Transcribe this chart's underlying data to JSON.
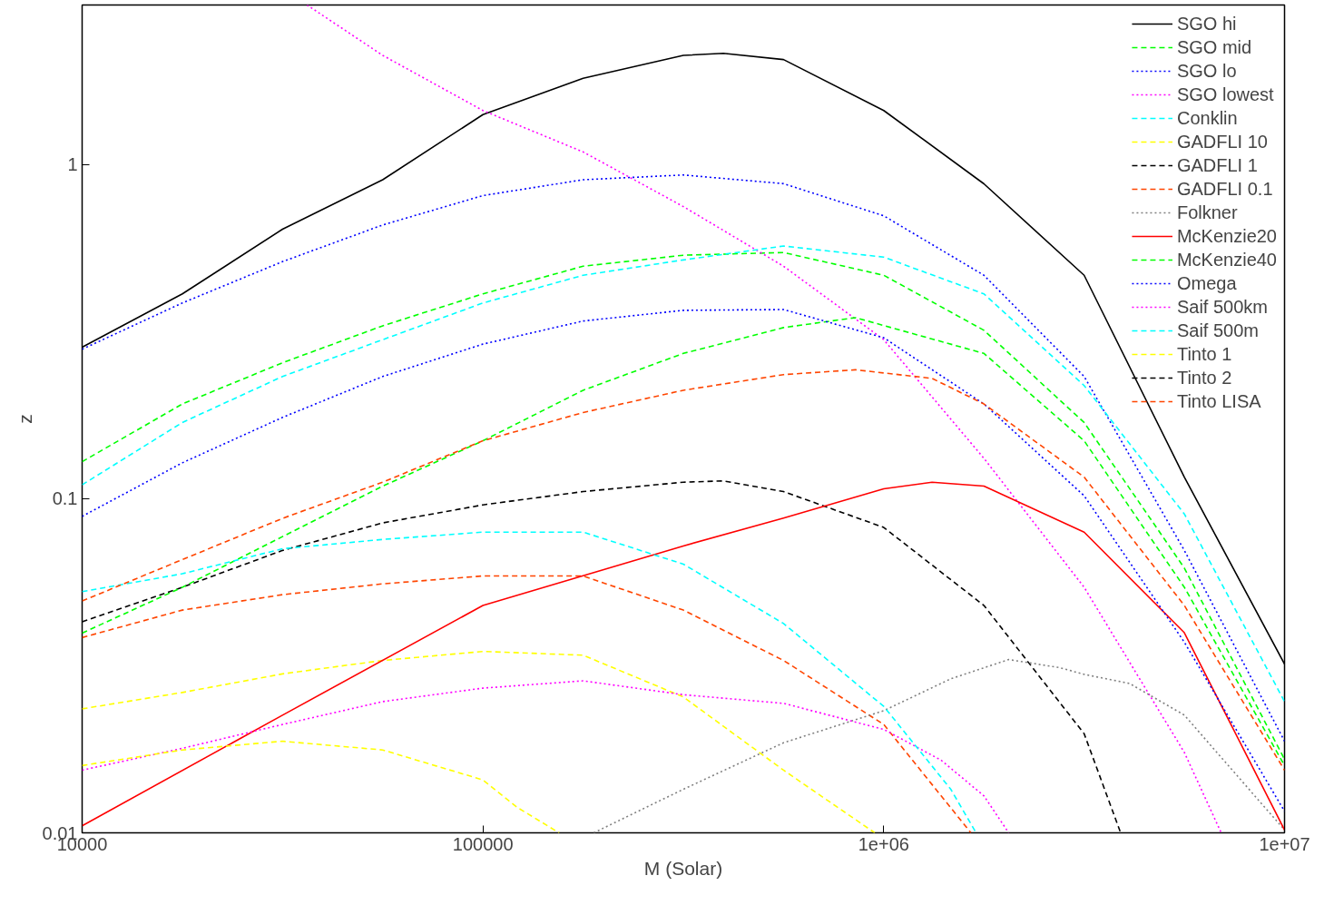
{
  "chart_data": {
    "type": "line",
    "xlabel": "M (Solar)",
    "ylabel": "z",
    "log": "xy",
    "xlim": [
      10000,
      10000000
    ],
    "ylim": [
      0.01,
      3
    ],
    "xticks": [
      10000,
      100000,
      {
        "value": 1000000,
        "label": "1e+06"
      },
      {
        "value": 10000000,
        "label": "1e+07"
      }
    ],
    "yticks": [
      0.01,
      0.1,
      1
    ],
    "grid": false,
    "legend": "top right",
    "marker": "none",
    "series": [
      {
        "name": "SGO hi",
        "color": "#000000",
        "line_style": "solid",
        "x": [
          10000,
          17783,
          31623,
          56234,
          100000,
          177828,
          316228,
          398107,
          562341,
          1000000,
          1778279,
          3162278,
          5623413,
          10000000
        ],
        "values": [
          0.284,
          0.41,
          0.64,
          0.9,
          1.41,
          1.81,
          2.12,
          2.15,
          2.06,
          1.45,
          0.875,
          0.466,
          0.116,
          0.032
        ]
      },
      {
        "name": "SGO mid",
        "color": "#00ff00",
        "line_style": "dashed",
        "x": [
          10000,
          17783,
          31623,
          56234,
          100000,
          177828,
          316228,
          562341,
          1000000,
          1778279,
          3162278,
          5623413,
          10000000
        ],
        "values": [
          0.129,
          0.192,
          0.255,
          0.329,
          0.41,
          0.496,
          0.535,
          0.545,
          0.466,
          0.319,
          0.169,
          0.062,
          0.0166
        ]
      },
      {
        "name": "SGO lo",
        "color": "#0000ff",
        "line_style": "dotted",
        "x": [
          10000,
          17783,
          31623,
          56234,
          100000,
          177828,
          316228,
          562341,
          1000000,
          1778279,
          3162278,
          5623413,
          10000000
        ],
        "values": [
          0.28,
          0.385,
          0.512,
          0.659,
          0.807,
          0.9,
          0.93,
          0.876,
          0.702,
          0.466,
          0.232,
          0.07,
          0.0188
        ]
      },
      {
        "name": "SGO lowest",
        "color": "#ff00ff",
        "line_style": "dotted",
        "x": [
          36400,
          56234,
          100000,
          177828,
          316228,
          562341,
          1000000,
          1778279,
          3162278,
          5623413,
          6950000
        ],
        "values": [
          3.0,
          2.12,
          1.45,
          1.09,
          0.748,
          0.496,
          0.299,
          0.132,
          0.0543,
          0.0174,
          0.01
        ]
      },
      {
        "name": "Conklin",
        "color": "#00ffff",
        "line_style": "dashed",
        "x": [
          10000,
          17783,
          31623,
          56234,
          100000,
          177828,
          316228,
          562341,
          1000000,
          1778279,
          3162278,
          5623413,
          10000000
        ],
        "values": [
          0.11,
          0.169,
          0.232,
          0.299,
          0.385,
          0.466,
          0.518,
          0.57,
          0.528,
          0.41,
          0.218,
          0.09,
          0.0247
        ]
      },
      {
        "name": "GADFLI 10",
        "color": "#ffff00",
        "line_style": "dashed",
        "x": [
          10000,
          17783,
          31623,
          56234,
          100000,
          177828,
          316228,
          562341,
          950000
        ],
        "values": [
          0.0235,
          0.0263,
          0.0299,
          0.0328,
          0.0349,
          0.034,
          0.0255,
          0.0154,
          0.01
        ]
      },
      {
        "name": "GADFLI 1",
        "color": "#000000",
        "line_style": "dashed",
        "x": [
          10000,
          17783,
          31623,
          56234,
          100000,
          177828,
          316228,
          398107,
          562341,
          1000000,
          1778279,
          3162278,
          3900000
        ],
        "values": [
          0.0428,
          0.0543,
          0.07,
          0.0846,
          0.0958,
          0.105,
          0.112,
          0.113,
          0.105,
          0.082,
          0.0479,
          0.0198,
          0.01
        ]
      },
      {
        "name": "GADFLI 0.1",
        "color": "#ff4500",
        "line_style": "dashed",
        "x": [
          10000,
          17783,
          31623,
          56234,
          100000,
          177828,
          316228,
          562341,
          1000000,
          1650000
        ],
        "values": [
          0.0384,
          0.0464,
          0.0516,
          0.0556,
          0.0587,
          0.0587,
          0.0464,
          0.0328,
          0.0211,
          0.01
        ]
      },
      {
        "name": "Folkner",
        "color": "#808080",
        "line_style": "dotted",
        "x": [
          189000,
          316228,
          562341,
          1000000,
          1470000,
          2050000,
          2750000,
          3162278,
          4100000,
          5623413,
          10000000
        ],
        "values": [
          0.01,
          0.0135,
          0.0186,
          0.0232,
          0.0289,
          0.033,
          0.0312,
          0.0298,
          0.028,
          0.0225,
          0.0102
        ]
      },
      {
        "name": "McKenzie20",
        "color": "#ff0000",
        "line_style": "solid",
        "x": [
          10000,
          31623,
          100000,
          316228,
          562341,
          1000000,
          1320000,
          1778279,
          3162278,
          5623413,
          10000000
        ],
        "values": [
          0.0105,
          0.0225,
          0.0479,
          0.0722,
          0.0875,
          0.107,
          0.112,
          0.109,
          0.0794,
          0.0397,
          0.0102
        ]
      },
      {
        "name": "McKenzie40",
        "color": "#00ff00",
        "line_style": "dashed",
        "x": [
          10000,
          17783,
          31623,
          56234,
          100000,
          177828,
          316228,
          562341,
          850000,
          1778279,
          3162278,
          5623413,
          10000000
        ],
        "values": [
          0.0396,
          0.0543,
          0.077,
          0.109,
          0.149,
          0.211,
          0.272,
          0.325,
          0.348,
          0.272,
          0.149,
          0.0543,
          0.0159
        ]
      },
      {
        "name": "Omega",
        "color": "#0000ff",
        "line_style": "dotted",
        "x": [
          10000,
          17783,
          31623,
          56234,
          100000,
          177828,
          316228,
          562341,
          1000000,
          1778279,
          3162278,
          5623413,
          10000000
        ],
        "values": [
          0.0885,
          0.128,
          0.175,
          0.232,
          0.29,
          0.34,
          0.366,
          0.368,
          0.303,
          0.192,
          0.102,
          0.0372,
          0.0116
        ]
      },
      {
        "name": "Saif 500km",
        "color": "#ff00ff",
        "line_style": "dotted",
        "x": [
          10000,
          17783,
          31623,
          56234,
          100000,
          177828,
          316228,
          562341,
          1000000,
          1390000,
          1778279,
          2050000
        ],
        "values": [
          0.0154,
          0.0179,
          0.0211,
          0.0247,
          0.0271,
          0.0285,
          0.0259,
          0.0244,
          0.0204,
          0.0165,
          0.0129,
          0.01
        ]
      },
      {
        "name": "Saif 500m",
        "color": "#00ffff",
        "line_style": "dashed",
        "x": [
          10000,
          17783,
          31623,
          56234,
          100000,
          177828,
          316228,
          562341,
          1000000,
          1470000,
          1700000
        ],
        "values": [
          0.0527,
          0.0596,
          0.0708,
          0.0755,
          0.0794,
          0.0794,
          0.0637,
          0.0423,
          0.0239,
          0.0135,
          0.01
        ]
      },
      {
        "name": "Tinto 1",
        "color": "#ffff00",
        "line_style": "dashed",
        "x": [
          10000,
          17783,
          31623,
          56234,
          100000,
          122000,
          155000
        ],
        "values": [
          0.0159,
          0.0177,
          0.0188,
          0.0177,
          0.0144,
          0.0119,
          0.01
        ]
      },
      {
        "name": "Tinto 2",
        "color": "#000000",
        "line_style": "dashed"
      },
      {
        "name": "Tinto LISA",
        "color": "#ff4500",
        "line_style": "dashed",
        "x": [
          10000,
          17783,
          31623,
          56234,
          100000,
          177828,
          316228,
          562341,
          850000,
          1320000,
          1778279,
          3162278,
          5623413,
          10000000
        ],
        "values": [
          0.0494,
          0.0657,
          0.0873,
          0.112,
          0.149,
          0.181,
          0.211,
          0.235,
          0.243,
          0.229,
          0.192,
          0.116,
          0.0479,
          0.0154
        ]
      }
    ]
  }
}
